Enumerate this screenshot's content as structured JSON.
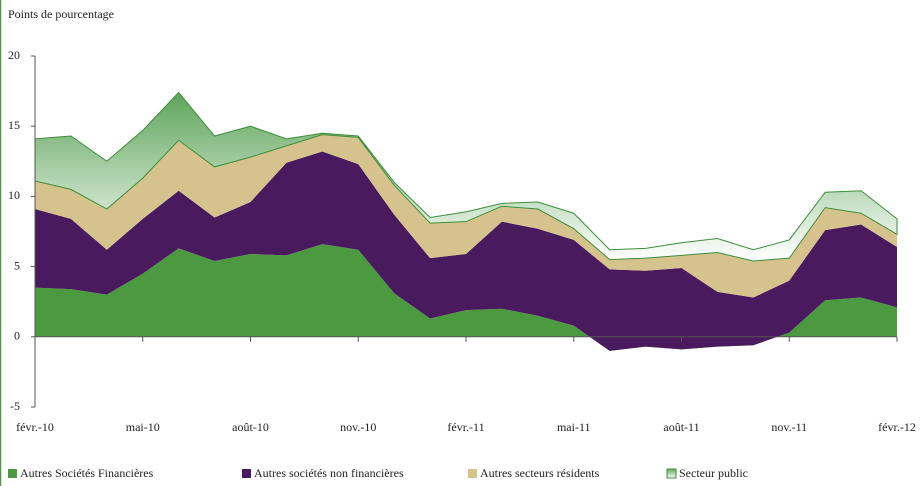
{
  "chart_data": {
    "type": "stacked_area",
    "y_axis_label": "Points de pourcentage",
    "categories": [
      "févr.-10",
      null,
      null,
      "mai-10",
      null,
      null,
      "août-10",
      null,
      null,
      "nov.-10",
      null,
      null,
      "févr.-11",
      null,
      null,
      "mai-11",
      null,
      null,
      "août-11",
      null,
      null,
      "nov.-11",
      null,
      null,
      "févr.-12"
    ],
    "ylim": [
      -5,
      20
    ],
    "yticks": [
      -5,
      0,
      5,
      10,
      15,
      20
    ],
    "legend": "bottom",
    "series": [
      {
        "name": "Autres Sociétés Financières",
        "color": "#4c9a40",
        "values": [
          3.5,
          3.4,
          3.0,
          4.5,
          6.3,
          5.4,
          5.9,
          5.8,
          6.6,
          6.2,
          3.1,
          1.3,
          1.9,
          2.0,
          1.5,
          0.8,
          -1.0,
          -0.7,
          -0.9,
          -0.7,
          -0.6,
          0.3,
          2.6,
          2.8,
          2.1
        ]
      },
      {
        "name": "Autres sociétés non financières",
        "color": "#4a1a5e",
        "values": [
          5.6,
          5.0,
          3.2,
          3.9,
          4.1,
          3.1,
          3.7,
          6.6,
          6.6,
          6.1,
          5.6,
          4.3,
          4.0,
          6.2,
          6.2,
          6.1,
          5.8,
          5.4,
          5.8,
          3.9,
          3.4,
          3.7,
          5.0,
          5.2,
          4.3
        ]
      },
      {
        "name": "Autres secteurs résidents",
        "color": "#d6c28c",
        "values": [
          2.0,
          2.1,
          2.9,
          2.9,
          3.6,
          3.6,
          3.2,
          1.2,
          1.2,
          1.9,
          2.1,
          2.5,
          2.3,
          1.1,
          1.4,
          0.8,
          0.7,
          0.9,
          0.9,
          2.8,
          2.6,
          1.6,
          1.6,
          0.8,
          0.9
        ]
      },
      {
        "name": "Secteur public",
        "color": "#3d8f3a",
        "values": [
          3.0,
          3.8,
          3.4,
          3.4,
          3.4,
          2.2,
          2.2,
          0.5,
          0.1,
          0.1,
          0.2,
          0.4,
          0.7,
          0.2,
          0.5,
          1.1,
          0.7,
          0.7,
          0.9,
          1.0,
          0.8,
          1.3,
          1.1,
          1.6,
          1.1
        ]
      }
    ]
  }
}
